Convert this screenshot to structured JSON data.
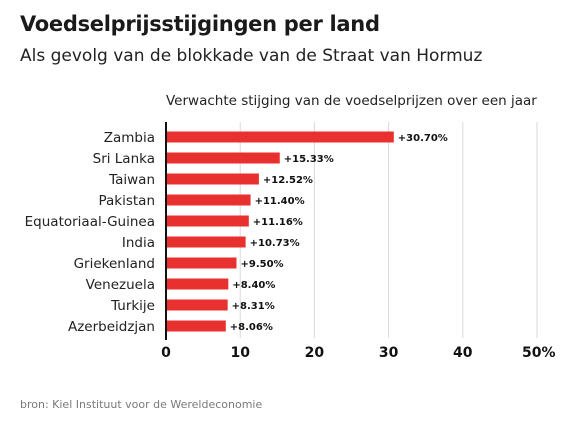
{
  "header": {
    "title": "Voedselprijsstijgingen per land",
    "subtitle": "Als gevolg van de blokkade van de Straat van Hormuz"
  },
  "footer": {
    "source": "bron: Kiel Instituut voor de Wereldeconomie"
  },
  "colors": {
    "bar": "#e8312f",
    "grid": "#d9d9d9",
    "axis": "#111111"
  },
  "chart_data": {
    "type": "bar",
    "orientation": "horizontal",
    "title": "Verwachte stijging van de voedselprijzen over een jaar",
    "categories": [
      "Zambia",
      "Sri Lanka",
      "Taiwan",
      "Pakistan",
      "Equatoriaal-Guinea",
      "India",
      "Griekenland",
      "Venezuela",
      "Turkije",
      "Azerbeidzjan"
    ],
    "values": [
      30.7,
      15.33,
      12.52,
      11.4,
      11.16,
      10.73,
      9.5,
      8.4,
      8.31,
      8.06
    ],
    "value_labels": [
      "+30.70%",
      "+15.33%",
      "+12.52%",
      "+11.40%",
      "+11.16%",
      "+10.73%",
      "+9.50%",
      "+8.40%",
      "+8.31%",
      "+8.06%"
    ],
    "xlim": [
      0,
      50
    ],
    "xticks": [
      0,
      10,
      20,
      30,
      40,
      50
    ],
    "xtick_labels": [
      "0",
      "10",
      "20",
      "30",
      "40",
      "50%"
    ],
    "grid": true
  }
}
